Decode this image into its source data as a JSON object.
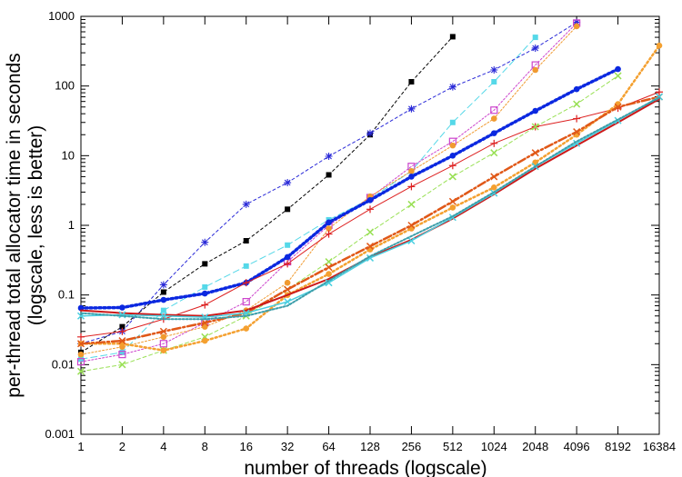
{
  "chart_data": {
    "type": "line",
    "title": "",
    "xlabel": "number of threads (logscale)",
    "ylabel": "per-thread total allocator time in seconds",
    "ylabel2": "(logscale, less is better)",
    "x_scale": "log2",
    "y_scale": "log10",
    "x": [
      1,
      2,
      4,
      8,
      16,
      32,
      64,
      128,
      256,
      512,
      1024,
      2048,
      4096,
      8192,
      16384
    ],
    "x_tick_labels": [
      "1",
      "2",
      "4",
      "8",
      "16",
      "32",
      "64",
      "128",
      "256",
      "512",
      "1024",
      "2048",
      "4096",
      "8192",
      "16384"
    ],
    "y_ticks": [
      0.001,
      0.01,
      0.1,
      1,
      10,
      100,
      1000
    ],
    "y_tick_labels": [
      "0.001",
      "0.01",
      "0.1",
      "1",
      "10",
      "100",
      "1000"
    ],
    "xlim": [
      1,
      16384
    ],
    "ylim": [
      0.001,
      1000
    ],
    "grid": false,
    "legend": "none",
    "series": [
      {
        "color": "#000000",
        "dash": "3,3",
        "width": 1,
        "marker": "square",
        "values": [
          0.015,
          0.035,
          0.11,
          0.28,
          0.6,
          1.7,
          5.3,
          20,
          115,
          510,
          null,
          null,
          null,
          null,
          null
        ]
      },
      {
        "color": "#2a2ad8",
        "dash": "3,3",
        "width": 1,
        "marker": "star",
        "values": [
          0.02,
          0.03,
          0.14,
          0.57,
          2.0,
          4.1,
          9.8,
          21,
          47,
          97,
          170,
          350,
          820,
          null,
          null
        ]
      },
      {
        "color": "#55d8e8",
        "dash": "7,4",
        "width": 1,
        "marker": "square",
        "values": [
          0.012,
          0.015,
          0.06,
          0.13,
          0.26,
          0.52,
          1.2,
          2.4,
          6.0,
          30,
          115,
          500,
          null,
          null,
          null
        ]
      },
      {
        "color": "#cc44cc",
        "dash": "2,2",
        "width": 1,
        "marker": "open-square",
        "values": [
          0.011,
          0.014,
          0.02,
          0.04,
          0.08,
          0.3,
          1.0,
          2.5,
          7.0,
          16,
          45,
          200,
          800,
          null,
          null
        ]
      },
      {
        "color": "#f09a30",
        "dash": "2,2",
        "width": 1,
        "marker": "circle",
        "values": [
          0.014,
          0.018,
          0.025,
          0.035,
          0.06,
          0.15,
          0.9,
          2.6,
          6.0,
          14,
          34,
          170,
          720,
          null,
          null
        ]
      },
      {
        "color": "#0b28e0",
        "dash": "2,3",
        "width": 3.5,
        "marker": "circle",
        "values": [
          0.065,
          0.066,
          0.085,
          0.105,
          0.15,
          0.35,
          1.1,
          2.3,
          5.0,
          10,
          21,
          44,
          90,
          175,
          null
        ]
      },
      {
        "color": "#dd2020",
        "dash": "",
        "width": 1,
        "marker": "plus",
        "values": [
          0.025,
          0.03,
          0.045,
          0.072,
          0.15,
          0.28,
          0.75,
          1.7,
          3.6,
          7.2,
          15,
          26,
          34,
          48,
          82
        ]
      },
      {
        "color": "#99e055",
        "dash": "4,3",
        "width": 1,
        "marker": "x",
        "values": [
          0.008,
          0.01,
          0.016,
          0.025,
          0.05,
          0.12,
          0.3,
          0.8,
          2.0,
          5.0,
          11,
          26,
          55,
          140,
          null
        ]
      },
      {
        "color": "#f4a030",
        "dash": "2,3",
        "width": 2.5,
        "marker": "circle",
        "values": [
          0.02,
          0.02,
          0.016,
          0.022,
          0.033,
          0.1,
          0.2,
          0.45,
          0.9,
          1.8,
          3.5,
          8,
          20,
          55,
          380
        ]
      },
      {
        "color": "#e05818",
        "dash": "9,3,2,3",
        "width": 2.5,
        "marker": "x",
        "values": [
          0.02,
          0.022,
          0.03,
          0.04,
          0.055,
          0.12,
          0.25,
          0.5,
          1.0,
          2.2,
          5.0,
          11,
          22,
          50,
          70
        ]
      },
      {
        "color": "#cc1818",
        "dash": "",
        "width": 2,
        "marker": "none",
        "values": [
          0.06,
          0.055,
          0.052,
          0.05,
          0.06,
          0.1,
          0.17,
          0.35,
          0.62,
          1.25,
          2.8,
          6.5,
          14,
          30,
          65
        ]
      },
      {
        "color": "#49cfe0",
        "dash": "",
        "width": 1.5,
        "marker": "x",
        "values": [
          0.05,
          0.052,
          0.05,
          0.048,
          0.055,
          0.08,
          0.15,
          0.34,
          0.6,
          1.3,
          2.9,
          7,
          15,
          32,
          70
        ]
      },
      {
        "color": "#3c9eaa",
        "dash": "2,2",
        "width": 2,
        "marker": "none",
        "values": [
          0.055,
          0.05,
          0.045,
          0.045,
          0.05,
          0.07,
          0.16,
          0.36,
          0.7,
          1.35,
          3.0,
          7,
          16,
          33,
          68
        ]
      }
    ]
  }
}
